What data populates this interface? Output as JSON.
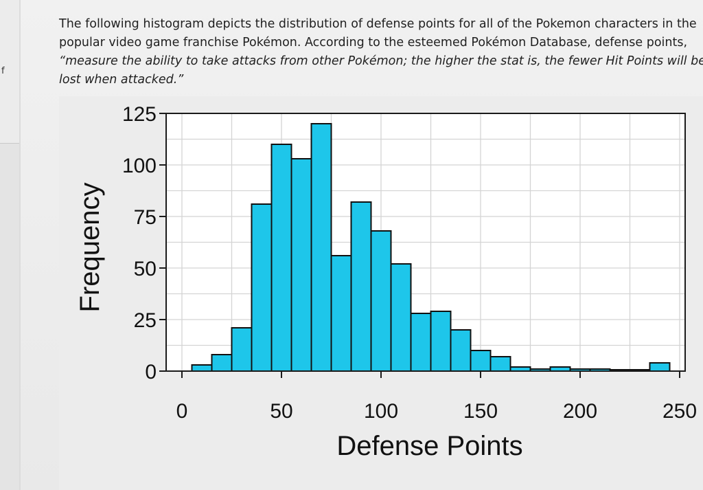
{
  "question": {
    "lines": [
      "The following histogram depicts the distribution of defense points for all of the Pokemon characters in the",
      "popular video game franchise Pokémon. According to the esteemed Pokémon Database, defense points,",
      "“measure the ability to take attacks from other Pokémon; the higher the stat is, the fewer Hit Points will be",
      "lost when attacked.”"
    ]
  },
  "sidebar": {
    "letter": "f"
  },
  "chart_data": {
    "type": "bar",
    "title": "",
    "xlabel": "Defense Points",
    "ylabel": "Frequency",
    "xlim": [
      0,
      250
    ],
    "ylim": [
      0,
      125
    ],
    "xticks": [
      "0",
      "50",
      "100",
      "150",
      "200",
      "250"
    ],
    "yticks": [
      "0",
      "25",
      "50",
      "75",
      "100",
      "125"
    ],
    "grid": true,
    "bin_width": 10,
    "bins": [
      {
        "start": 5,
        "value": 3
      },
      {
        "start": 15,
        "value": 8
      },
      {
        "start": 25,
        "value": 21
      },
      {
        "start": 35,
        "value": 81
      },
      {
        "start": 45,
        "value": 110
      },
      {
        "start": 55,
        "value": 103
      },
      {
        "start": 65,
        "value": 120
      },
      {
        "start": 75,
        "value": 56
      },
      {
        "start": 85,
        "value": 82
      },
      {
        "start": 95,
        "value": 68
      },
      {
        "start": 105,
        "value": 52
      },
      {
        "start": 115,
        "value": 28
      },
      {
        "start": 125,
        "value": 29
      },
      {
        "start": 135,
        "value": 20
      },
      {
        "start": 145,
        "value": 10
      },
      {
        "start": 155,
        "value": 7
      },
      {
        "start": 165,
        "value": 2
      },
      {
        "start": 175,
        "value": 1
      },
      {
        "start": 185,
        "value": 2
      },
      {
        "start": 195,
        "value": 1
      },
      {
        "start": 205,
        "value": 1
      },
      {
        "start": 215,
        "value": 0
      },
      {
        "start": 225,
        "value": 0
      },
      {
        "start": 235,
        "value": 4
      }
    ],
    "colors": {
      "bar_fill": "#1ec6ea",
      "bar_stroke": "#111111",
      "grid": "#d4d4d4",
      "plot_bg": "#ffffff"
    }
  }
}
